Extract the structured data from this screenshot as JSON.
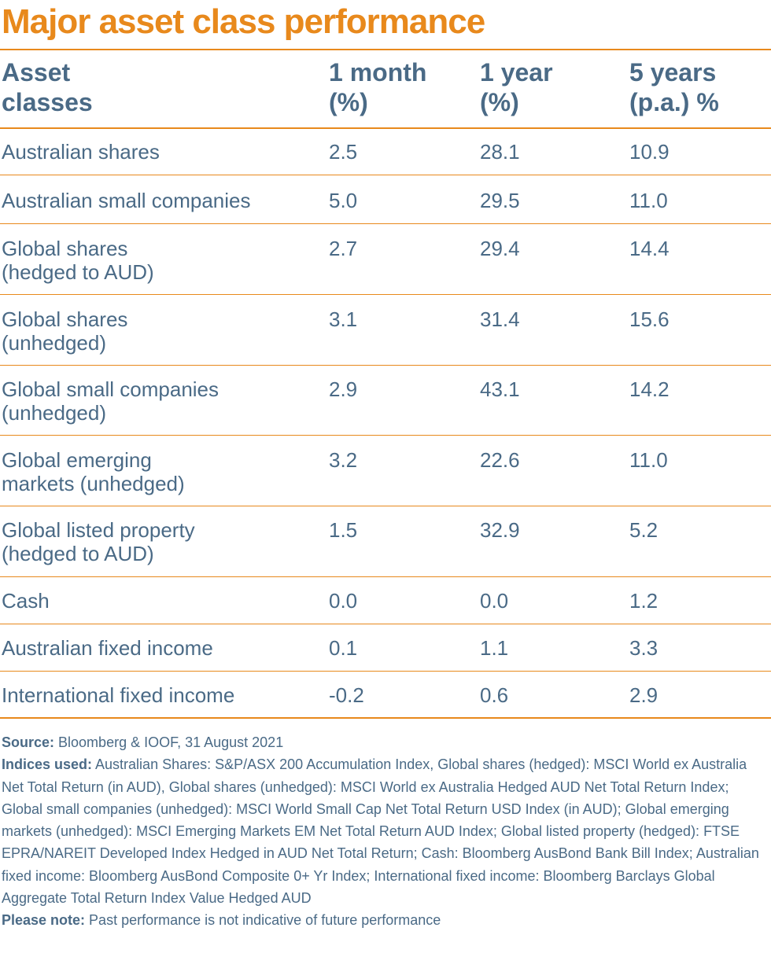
{
  "title": "Major asset class performance",
  "table": {
    "headers": [
      "Asset\nclasses",
      "1 month\n(%)",
      "1 year\n(%)",
      "5 years\n(p.a.) %"
    ],
    "rows": [
      {
        "asset": "Australian shares",
        "m1": "2.5",
        "y1": "28.1",
        "y5": "10.9"
      },
      {
        "asset": "Australian small companies",
        "m1": "5.0",
        "y1": "29.5",
        "y5": "11.0"
      },
      {
        "asset": "Global shares\n(hedged to AUD)",
        "m1": "2.7",
        "y1": "29.4",
        "y5": "14.4"
      },
      {
        "asset": "Global shares\n(unhedged)",
        "m1": "3.1",
        "y1": "31.4",
        "y5": "15.6"
      },
      {
        "asset": "Global small companies\n(unhedged)",
        "m1": "2.9",
        "y1": "43.1",
        "y5": "14.2"
      },
      {
        "asset": "Global emerging\nmarkets (unhedged)",
        "m1": "3.2",
        "y1": "22.6",
        "y5": "11.0"
      },
      {
        "asset": "Global listed property\n(hedged to AUD)",
        "m1": "1.5",
        "y1": "32.9",
        "y5": "5.2"
      },
      {
        "asset": "Cash",
        "m1": "0.0",
        "y1": "0.0",
        "y5": "1.2"
      },
      {
        "asset": "Australian fixed income",
        "m1": "0.1",
        "y1": "1.1",
        "y5": "3.3"
      },
      {
        "asset": "International fixed income",
        "m1": "-0.2",
        "y1": "0.6",
        "y5": "2.9"
      }
    ]
  },
  "notes": {
    "source_label": "Source:",
    "source_text": " Bloomberg & IOOF, 31 August 2021",
    "indices_label": "Indices used:",
    "indices_text": " Australian Shares: S&P/ASX 200 Accumulation Index, Global shares (hedged): MSCI World ex Australia Net Total Return (in AUD), Global shares (unhedged): MSCI World ex Australia Hedged AUD Net Total Return Index; Global small companies (unhedged): MSCI World Small Cap Net Total Return USD Index (in AUD); Global emerging markets (unhedged): MSCI Emerging Markets EM Net Total Return AUD Index; Global listed property (hedged): FTSE EPRA/NAREIT Developed Index Hedged in AUD Net Total Return; Cash: Bloomberg AusBond Bank Bill Index; Australian fixed income: Bloomberg AusBond Composite 0+ Yr Index; International fixed income: Bloomberg Barclays Global Aggregate Total Return Index Value Hedged AUD",
    "note_label": "Please note:",
    "note_text": " Past performance is not indicative of future performance"
  }
}
